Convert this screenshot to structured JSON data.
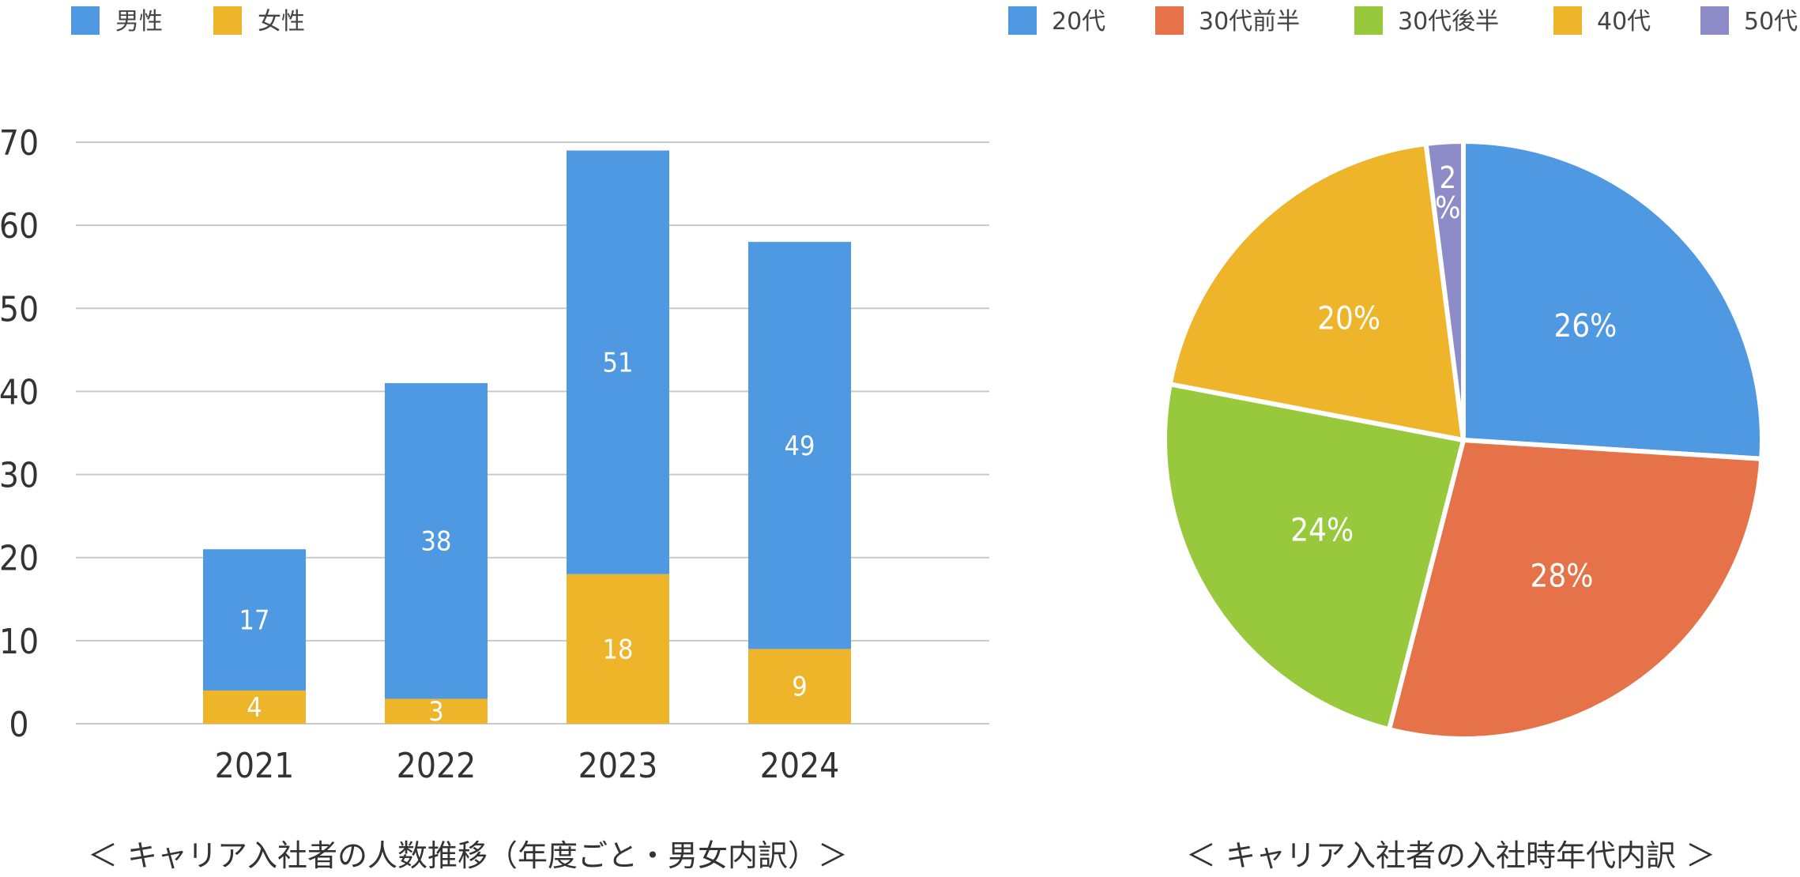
{
  "colors": {
    "male": "#4F98E2",
    "female": "#EEB42A",
    "age20s": "#4F98E2",
    "age30early": "#E57248",
    "age30late": "#98C93C",
    "age40s": "#EEB42A",
    "age50s": "#8E8CC8",
    "grid": "#c9c9c9"
  },
  "chart_data": [
    {
      "type": "bar",
      "stacked": true,
      "title": "＜ キャリア入社者の人数推移（年度ごと・男女内訳）＞",
      "categories": [
        "2021",
        "2022",
        "2023",
        "2024"
      ],
      "series": [
        {
          "name": "男性",
          "values": [
            17,
            38,
            51,
            49
          ],
          "color_key": "male"
        },
        {
          "name": "女性",
          "values": [
            4,
            3,
            18,
            9
          ],
          "color_key": "female"
        }
      ],
      "stack_order": [
        "女性",
        "男性"
      ],
      "ylim": [
        0,
        70
      ],
      "yticks": [
        "0",
        "10",
        "20",
        "30",
        "40",
        "50",
        "60",
        "70"
      ],
      "grid": true,
      "legend": "top-left"
    },
    {
      "type": "pie",
      "title": "＜ キャリア入社者の入社時年代内訳 ＞",
      "labels": [
        "20代",
        "30代前半",
        "30代後半",
        "40代",
        "50代"
      ],
      "values": [
        26,
        28,
        24,
        20,
        2
      ],
      "value_labels": [
        "26%",
        "28%",
        "24%",
        "20%",
        "2%"
      ],
      "color_keys": [
        "age20s",
        "age30early",
        "age30late",
        "age40s",
        "age50s"
      ],
      "legend": "top"
    }
  ]
}
